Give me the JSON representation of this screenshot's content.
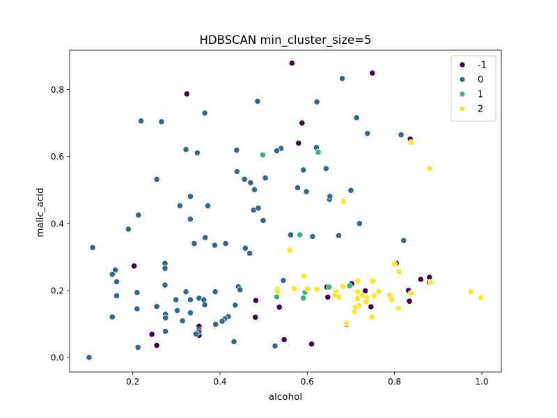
{
  "chart_data": {
    "type": "scatter",
    "title": "HDBSCAN min_cluster_size=5",
    "xlabel": "alcohol",
    "ylabel": "malic_acid",
    "xlim": [
      0.0553,
      1.0447
    ],
    "ylim": [
      -0.0437,
      0.9177
    ],
    "xticks": [
      0.2,
      0.4,
      0.6,
      0.8,
      1.0
    ],
    "xtick_labels": [
      "0.2",
      "0.4",
      "0.6",
      "0.8",
      "1.0"
    ],
    "yticks": [
      0.0,
      0.2,
      0.4,
      0.6,
      0.8
    ],
    "ytick_labels": [
      "0.0",
      "0.2",
      "0.4",
      "0.6",
      "0.8"
    ],
    "grid": false,
    "legend_position": "upper-right",
    "series": [
      {
        "name": "-1",
        "color": "#440154",
        "points": [
          [
            0.565,
            0.879
          ],
          [
            0.749,
            0.849
          ],
          [
            0.324,
            0.787
          ],
          [
            0.588,
            0.7
          ],
          [
            0.58,
            0.64
          ],
          [
            0.836,
            0.652
          ],
          [
            0.203,
            0.273
          ],
          [
            0.804,
            0.281
          ],
          [
            0.88,
            0.239
          ],
          [
            0.86,
            0.233
          ],
          [
            0.88,
            0.224
          ],
          [
            0.832,
            0.2
          ],
          [
            0.733,
            0.199
          ],
          [
            0.702,
            0.22
          ],
          [
            0.645,
            0.21
          ],
          [
            0.647,
            0.18
          ],
          [
            0.746,
            0.151
          ],
          [
            0.834,
            0.168
          ],
          [
            0.482,
            0.17
          ],
          [
            0.536,
            0.15
          ],
          [
            0.481,
            0.12
          ],
          [
            0.69,
            0.099
          ],
          [
            0.352,
            0.093
          ],
          [
            0.352,
            0.082
          ],
          [
            0.352,
            0.066
          ],
          [
            0.244,
            0.069
          ],
          [
            0.547,
            0.053
          ],
          [
            0.61,
            0.04
          ],
          [
            0.255,
            0.036
          ]
        ]
      },
      {
        "name": "0",
        "color": "#31688e",
        "points": [
          [
            0.68,
            0.833
          ],
          [
            0.486,
            0.765
          ],
          [
            0.622,
            0.763
          ],
          [
            0.365,
            0.73
          ],
          [
            0.713,
            0.716
          ],
          [
            0.219,
            0.706
          ],
          [
            0.266,
            0.704
          ],
          [
            0.738,
            0.669
          ],
          [
            0.815,
            0.665
          ],
          [
            0.621,
            0.627
          ],
          [
            0.54,
            0.624
          ],
          [
            0.53,
            0.617
          ],
          [
            0.322,
            0.621
          ],
          [
            0.438,
            0.619
          ],
          [
            0.348,
            0.611
          ],
          [
            0.255,
            0.532
          ],
          [
            0.439,
            0.555
          ],
          [
            0.456,
            0.532
          ],
          [
            0.47,
            0.522
          ],
          [
            0.479,
            0.501
          ],
          [
            0.578,
            0.507
          ],
          [
            0.598,
            0.495
          ],
          [
            0.643,
            0.564
          ],
          [
            0.591,
            0.56
          ],
          [
            0.504,
            0.536
          ],
          [
            0.651,
            0.472
          ],
          [
            0.652,
            0.481
          ],
          [
            0.7,
            0.499
          ],
          [
            0.332,
            0.481
          ],
          [
            0.308,
            0.453
          ],
          [
            0.372,
            0.453
          ],
          [
            0.477,
            0.44
          ],
          [
            0.488,
            0.446
          ],
          [
            0.213,
            0.425
          ],
          [
            0.332,
            0.413
          ],
          [
            0.499,
            0.409
          ],
          [
            0.72,
            0.4
          ],
          [
            0.19,
            0.383
          ],
          [
            0.366,
            0.358
          ],
          [
            0.341,
            0.34
          ],
          [
            0.388,
            0.335
          ],
          [
            0.413,
            0.34
          ],
          [
            0.562,
            0.366
          ],
          [
            0.612,
            0.361
          ],
          [
            0.672,
            0.364
          ],
          [
            0.821,
            0.349
          ],
          [
            0.108,
            0.328
          ],
          [
            0.458,
            0.326
          ],
          [
            0.468,
            0.311
          ],
          [
            0.274,
            0.281
          ],
          [
            0.274,
            0.266
          ],
          [
            0.16,
            0.261
          ],
          [
            0.153,
            0.248
          ],
          [
            0.163,
            0.226
          ],
          [
            0.274,
            0.216
          ],
          [
            0.442,
            0.211
          ],
          [
            0.446,
            0.202
          ],
          [
            0.322,
            0.196
          ],
          [
            0.21,
            0.194
          ],
          [
            0.389,
            0.196
          ],
          [
            0.545,
            0.23
          ],
          [
            0.163,
            0.184
          ],
          [
            0.332,
            0.172
          ],
          [
            0.299,
            0.172
          ],
          [
            0.352,
            0.177
          ],
          [
            0.363,
            0.172
          ],
          [
            0.365,
            0.157
          ],
          [
            0.435,
            0.156
          ],
          [
            0.255,
            0.152
          ],
          [
            0.21,
            0.145
          ],
          [
            0.302,
            0.14
          ],
          [
            0.332,
            0.133
          ],
          [
            0.275,
            0.129
          ],
          [
            0.275,
            0.118
          ],
          [
            0.419,
            0.122
          ],
          [
            0.411,
            0.115
          ],
          [
            0.405,
            0.108
          ],
          [
            0.153,
            0.121
          ],
          [
            0.314,
            0.109
          ],
          [
            0.39,
            0.099
          ],
          [
            0.352,
            0.077
          ],
          [
            0.275,
            0.078
          ],
          [
            0.345,
            0.07
          ],
          [
            0.432,
            0.047
          ],
          [
            0.526,
            0.034
          ],
          [
            0.212,
            0.03
          ],
          [
            0.1,
            0.0
          ]
        ]
      },
      {
        "name": "1",
        "color": "#35b779",
        "points": [
          [
            0.498,
            0.605
          ],
          [
            0.625,
            0.613
          ],
          [
            0.583,
            0.366
          ],
          [
            0.65,
            0.21
          ],
          [
            0.697,
            0.214
          ],
          [
            0.595,
            0.195
          ],
          [
            0.53,
            0.181
          ],
          [
            0.591,
            0.177
          ]
        ]
      },
      {
        "name": "2",
        "color": "#fde725",
        "points": [
          [
            0.838,
            0.642
          ],
          [
            0.881,
            0.564
          ],
          [
            0.683,
            0.466
          ],
          [
            0.56,
            0.32
          ],
          [
            0.8,
            0.279
          ],
          [
            0.81,
            0.256
          ],
          [
            0.592,
            0.243
          ],
          [
            0.748,
            0.23
          ],
          [
            0.716,
            0.229
          ],
          [
            0.75,
            0.228
          ],
          [
            0.883,
            0.224
          ],
          [
            0.682,
            0.212
          ],
          [
            0.57,
            0.205
          ],
          [
            0.532,
            0.204
          ],
          [
            0.532,
            0.196
          ],
          [
            0.6,
            0.205
          ],
          [
            0.622,
            0.204
          ],
          [
            0.666,
            0.196
          ],
          [
            0.716,
            0.196
          ],
          [
            0.764,
            0.197
          ],
          [
            0.789,
            0.186
          ],
          [
            0.727,
            0.185
          ],
          [
            0.838,
            0.192
          ],
          [
            0.975,
            0.196
          ],
          [
            0.664,
            0.185
          ],
          [
            0.672,
            0.18
          ],
          [
            0.715,
            0.176
          ],
          [
            0.736,
            0.179
          ],
          [
            0.753,
            0.184
          ],
          [
            0.793,
            0.173
          ],
          [
            0.998,
            0.178
          ],
          [
            0.735,
            0.166
          ],
          [
            0.718,
            0.155
          ],
          [
            0.71,
            0.15
          ],
          [
            0.809,
            0.146
          ],
          [
            0.708,
            0.137
          ],
          [
            0.748,
            0.121
          ],
          [
            0.69,
            0.102
          ]
        ]
      }
    ]
  }
}
